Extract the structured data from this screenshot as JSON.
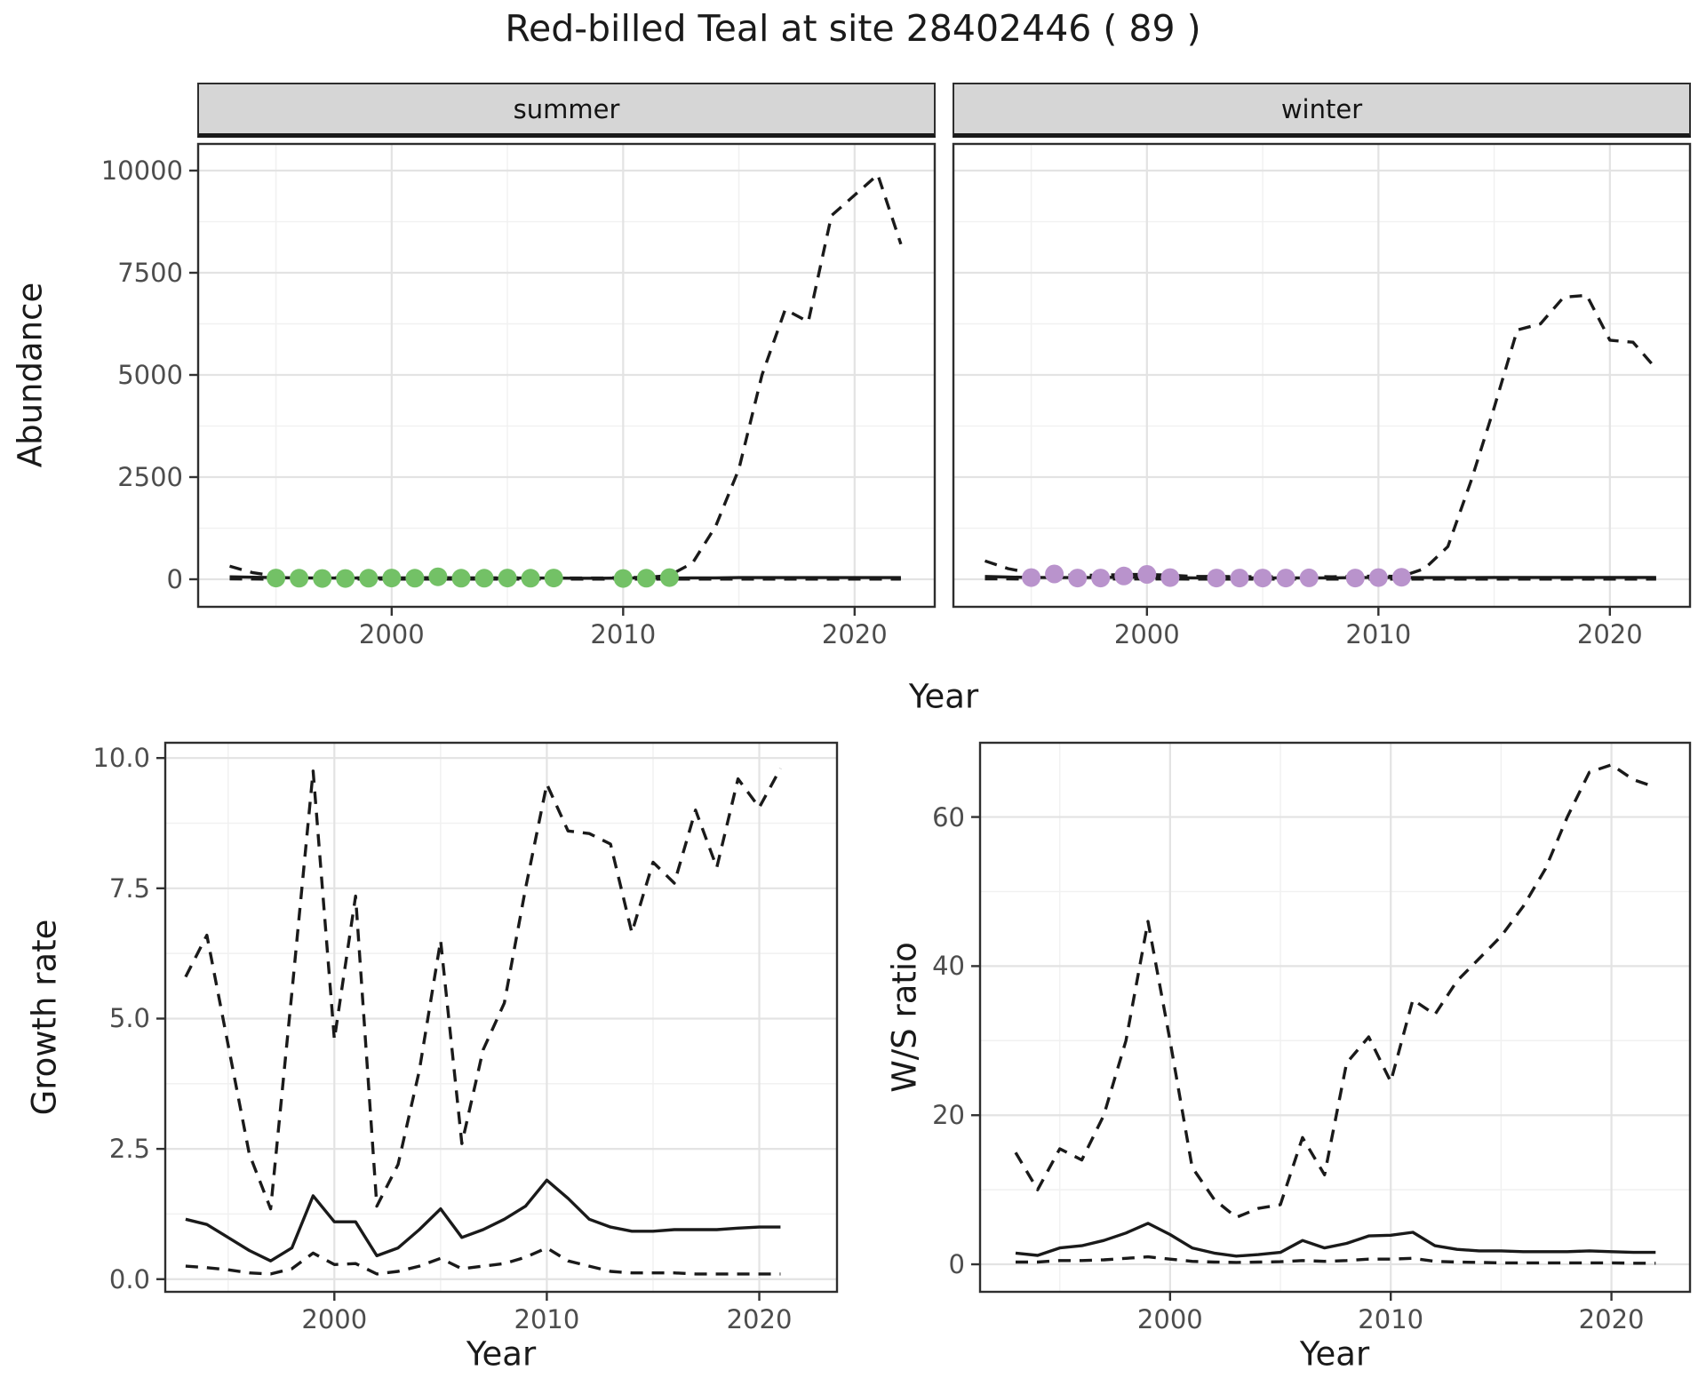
{
  "title": "Red-billed Teal at site 28402446 ( 89 )",
  "axis_labels": {
    "abundance": "Abundance",
    "year": "Year",
    "growth": "Growth rate",
    "ws": "W/S ratio"
  },
  "facets": {
    "summer": "summer",
    "winter": "winter"
  },
  "colors": {
    "summer_points": "#73c166",
    "winter_points": "#b993cc",
    "line": "#1a1a1a",
    "grid_major": "#e3e3e3",
    "grid_minor": "#f1f1f1",
    "strip_bg": "#d6d6d6",
    "panel_border": "#2e2e2e",
    "tick_text": "#4d4d4d"
  },
  "chart_data": [
    {
      "id": "abundance-summer",
      "type": "line",
      "facet_label": "summer",
      "xlabel": "Year",
      "ylabel": "Abundance",
      "x": [
        1993,
        1994,
        1995,
        1996,
        1997,
        1998,
        1999,
        2000,
        2001,
        2002,
        2003,
        2004,
        2005,
        2006,
        2007,
        2008,
        2009,
        2010,
        2011,
        2012,
        2013,
        2014,
        2015,
        2016,
        2017,
        2018,
        2019,
        2020,
        2021,
        2022
      ],
      "series": [
        {
          "name": "upper_ci",
          "style": "dashed",
          "values": [
            320,
            160,
            80,
            50,
            40,
            35,
            35,
            35,
            35,
            40,
            35,
            35,
            35,
            35,
            35,
            30,
            30,
            40,
            45,
            90,
            400,
            1300,
            2700,
            5000,
            6600,
            6300,
            8900,
            9400,
            9900,
            8200
          ]
        },
        {
          "name": "estimate",
          "style": "solid",
          "values": [
            60,
            50,
            40,
            35,
            30,
            30,
            30,
            30,
            30,
            35,
            30,
            30,
            30,
            30,
            30,
            25,
            25,
            30,
            35,
            30,
            35,
            35,
            40,
            40,
            40,
            40,
            40,
            40,
            40,
            40
          ]
        },
        {
          "name": "lower_ci",
          "style": "dashed",
          "values": [
            8,
            6,
            5,
            5,
            5,
            5,
            5,
            5,
            5,
            5,
            5,
            5,
            5,
            5,
            5,
            5,
            5,
            5,
            5,
            5,
            5,
            5,
            5,
            5,
            5,
            5,
            5,
            5,
            5,
            5
          ]
        }
      ],
      "points": {
        "name": "observed-counts",
        "color_key": "summer_points",
        "x": [
          1995,
          1996,
          1997,
          1998,
          1999,
          2000,
          2001,
          2002,
          2003,
          2004,
          2005,
          2006,
          2007,
          2010,
          2011,
          2012
        ],
        "y": [
          30,
          25,
          20,
          20,
          25,
          30,
          25,
          60,
          25,
          25,
          30,
          25,
          30,
          20,
          25,
          40
        ]
      },
      "xticks": [
        2000,
        2010,
        2020
      ],
      "xtick_labels": [
        "2000",
        "2010",
        "2020"
      ],
      "yticks": [
        0,
        2500,
        5000,
        7500,
        10000
      ],
      "ytick_labels": [
        "0",
        "2500",
        "5000",
        "7500",
        "10000"
      ],
      "show_ytick_labels": true,
      "xminor": [
        1995,
        2005,
        2015
      ],
      "yminor": [
        1250,
        3750,
        6250,
        8750
      ],
      "xlim": [
        1991.6,
        2023.5
      ],
      "ylim": [
        -696,
        10674
      ]
    },
    {
      "id": "abundance-winter",
      "type": "line",
      "facet_label": "winter",
      "xlabel": "Year",
      "ylabel": "Abundance",
      "x": [
        1993,
        1994,
        1995,
        1996,
        1997,
        1998,
        1999,
        2000,
        2001,
        2002,
        2003,
        2004,
        2005,
        2006,
        2007,
        2008,
        2009,
        2010,
        2011,
        2012,
        2013,
        2014,
        2015,
        2016,
        2017,
        2018,
        2019,
        2020,
        2021,
        2022
      ],
      "series": [
        {
          "name": "upper_ci",
          "style": "dashed",
          "values": [
            450,
            260,
            150,
            110,
            95,
            100,
            115,
            120,
            100,
            70,
            70,
            65,
            60,
            60,
            65,
            60,
            70,
            80,
            70,
            260,
            800,
            2400,
            4200,
            6100,
            6250,
            6900,
            6950,
            5850,
            5800,
            5150
          ]
        },
        {
          "name": "estimate",
          "style": "solid",
          "values": [
            70,
            55,
            45,
            40,
            40,
            45,
            50,
            50,
            45,
            35,
            35,
            35,
            35,
            35,
            35,
            35,
            40,
            45,
            40,
            40,
            40,
            40,
            45,
            45,
            45,
            45,
            45,
            45,
            45,
            45
          ]
        },
        {
          "name": "lower_ci",
          "style": "dashed",
          "values": [
            10,
            8,
            6,
            6,
            6,
            6,
            6,
            6,
            6,
            5,
            5,
            5,
            5,
            5,
            5,
            5,
            5,
            6,
            5,
            5,
            5,
            5,
            5,
            5,
            5,
            5,
            5,
            5,
            5,
            5
          ]
        }
      ],
      "points": {
        "name": "observed-counts",
        "color_key": "winter_points",
        "x": [
          1995,
          1996,
          1997,
          1998,
          1999,
          2000,
          2001,
          2003,
          2004,
          2005,
          2006,
          2007,
          2009,
          2010,
          2011
        ],
        "y": [
          40,
          130,
          30,
          30,
          80,
          120,
          40,
          30,
          30,
          30,
          30,
          35,
          30,
          40,
          50
        ]
      },
      "xticks": [
        2000,
        2010,
        2020
      ],
      "xtick_labels": [
        "2000",
        "2010",
        "2020"
      ],
      "yticks": [
        0,
        2500,
        5000,
        7500,
        10000
      ],
      "ytick_labels": [
        "0",
        "2500",
        "5000",
        "7500",
        "10000"
      ],
      "show_ytick_labels": false,
      "xminor": [
        1995,
        2005,
        2015
      ],
      "yminor": [
        1250,
        3750,
        6250,
        8750
      ],
      "xlim": [
        1991.6,
        2023.5
      ],
      "ylim": [
        -696,
        10674
      ]
    },
    {
      "id": "growth",
      "type": "line",
      "facet_label": "",
      "xlabel": "Year",
      "ylabel": "Growth rate",
      "x": [
        1993,
        1994,
        1995,
        1996,
        1997,
        1998,
        1999,
        2000,
        2001,
        2002,
        2003,
        2004,
        2005,
        2006,
        2007,
        2008,
        2009,
        2010,
        2011,
        2012,
        2013,
        2014,
        2015,
        2016,
        2017,
        2018,
        2019,
        2020,
        2021
      ],
      "series": [
        {
          "name": "upper_ci",
          "style": "dashed",
          "values": [
            5.8,
            6.6,
            4.5,
            2.4,
            1.35,
            5.5,
            9.75,
            4.6,
            7.35,
            1.4,
            2.2,
            4.0,
            6.5,
            2.6,
            4.4,
            5.3,
            7.5,
            9.5,
            8.6,
            8.55,
            8.35,
            6.65,
            8.0,
            7.6,
            9.0,
            7.9,
            9.6,
            9.05,
            9.8
          ]
        },
        {
          "name": "estimate",
          "style": "solid",
          "values": [
            1.15,
            1.05,
            0.8,
            0.55,
            0.35,
            0.6,
            1.6,
            1.1,
            1.1,
            0.45,
            0.6,
            0.95,
            1.35,
            0.8,
            0.95,
            1.15,
            1.4,
            1.9,
            1.55,
            1.15,
            1.0,
            0.92,
            0.92,
            0.95,
            0.95,
            0.95,
            0.98,
            1.0,
            1.0
          ]
        },
        {
          "name": "lower_ci",
          "style": "dashed",
          "values": [
            0.25,
            0.22,
            0.18,
            0.12,
            0.1,
            0.2,
            0.5,
            0.28,
            0.3,
            0.1,
            0.15,
            0.25,
            0.4,
            0.2,
            0.25,
            0.3,
            0.42,
            0.6,
            0.35,
            0.25,
            0.15,
            0.12,
            0.12,
            0.12,
            0.1,
            0.1,
            0.1,
            0.1,
            0.1
          ]
        }
      ],
      "points": null,
      "xticks": [
        2000,
        2010,
        2020
      ],
      "xtick_labels": [
        "2000",
        "2010",
        "2020"
      ],
      "yticks": [
        0,
        2.5,
        5,
        7.5,
        10
      ],
      "ytick_labels": [
        "0.0",
        "2.5",
        "5.0",
        "7.5",
        "10.0"
      ],
      "show_ytick_labels": true,
      "xminor": [
        1995,
        2005,
        2015
      ],
      "yminor": [
        1.25,
        3.75,
        6.25,
        8.75
      ],
      "xlim": [
        1992,
        2023.7
      ],
      "ylim": [
        -0.26,
        10.31
      ]
    },
    {
      "id": "ws",
      "type": "line",
      "facet_label": "",
      "xlabel": "Year",
      "ylabel": "W/S ratio",
      "x": [
        1993,
        1994,
        1995,
        1996,
        1997,
        1998,
        1999,
        2000,
        2001,
        2002,
        2003,
        2004,
        2005,
        2006,
        2007,
        2008,
        2009,
        2010,
        2011,
        2012,
        2013,
        2014,
        2015,
        2016,
        2017,
        2018,
        2019,
        2020,
        2021,
        2022
      ],
      "series": [
        {
          "name": "upper_ci",
          "style": "dashed",
          "values": [
            15,
            10,
            15.5,
            14,
            20,
            30,
            46,
            30,
            13,
            8.7,
            6.3,
            7.5,
            8,
            17,
            12,
            27,
            30.5,
            24.5,
            35.5,
            33.5,
            38,
            41,
            44,
            48,
            53,
            60,
            66,
            67,
            65,
            64
          ]
        },
        {
          "name": "estimate",
          "style": "solid",
          "values": [
            1.5,
            1.2,
            2.2,
            2.5,
            3.2,
            4.2,
            5.5,
            4.0,
            2.2,
            1.5,
            1.1,
            1.3,
            1.6,
            3.2,
            2.2,
            2.8,
            3.8,
            3.9,
            4.3,
            2.5,
            2.0,
            1.8,
            1.8,
            1.7,
            1.7,
            1.7,
            1.8,
            1.7,
            1.6,
            1.6
          ]
        },
        {
          "name": "lower_ci",
          "style": "dashed",
          "values": [
            0.3,
            0.3,
            0.5,
            0.5,
            0.6,
            0.8,
            1.0,
            0.7,
            0.4,
            0.3,
            0.25,
            0.3,
            0.35,
            0.5,
            0.4,
            0.5,
            0.7,
            0.7,
            0.8,
            0.4,
            0.3,
            0.25,
            0.2,
            0.2,
            0.2,
            0.2,
            0.2,
            0.2,
            0.15,
            0.15
          ]
        }
      ],
      "points": null,
      "xticks": [
        2000,
        2010,
        2020
      ],
      "xtick_labels": [
        "2000",
        "2010",
        "2020"
      ],
      "yticks": [
        0,
        20,
        40,
        60
      ],
      "ytick_labels": [
        "0",
        "20",
        "40",
        "60"
      ],
      "show_ytick_labels": true,
      "xminor": [
        10,
        30,
        50,
        70
      ],
      "yminor": [
        10,
        30,
        50,
        70
      ],
      "xminor_years": [
        1995,
        2005,
        2015
      ],
      "xlim": [
        1991.35,
        2023.6
      ],
      "ylim": [
        -3.81,
        70.08
      ]
    }
  ]
}
